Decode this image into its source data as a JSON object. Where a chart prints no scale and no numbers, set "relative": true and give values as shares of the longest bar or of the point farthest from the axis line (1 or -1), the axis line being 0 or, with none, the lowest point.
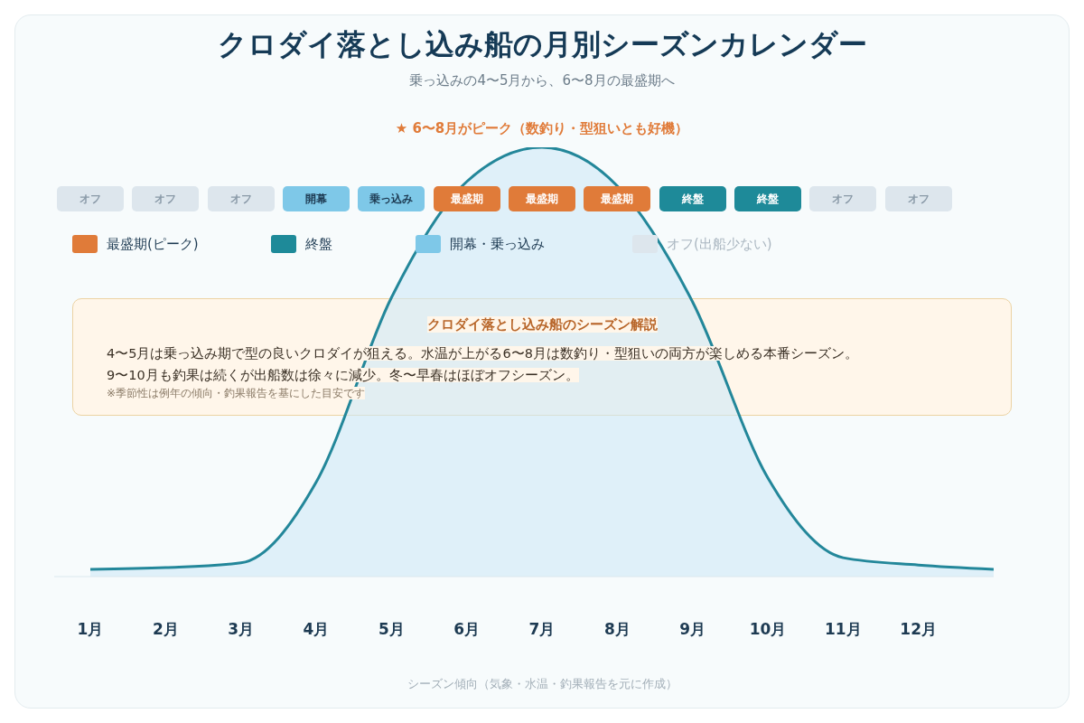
{
  "chart_data": {
    "type": "area",
    "title": "クロダイ落とし込み船の月別シーズンカレンダー",
    "subtitle": "乗っ込みの4〜5月から、6〜8月の最盛期へ",
    "categories": [
      "1月",
      "2月",
      "3月",
      "4月",
      "5月",
      "6月",
      "7月",
      "8月",
      "9月",
      "10月",
      "11月",
      "12月",
      null
    ],
    "relative": true,
    "series": [
      {
        "color": "#23879a",
        "values": [
          0.017,
          0.021,
          0.032,
          0.22,
          0.65,
          0.92,
          1,
          0.91,
          0.64,
          0.23,
          0.044,
          0.027,
          0.017
        ]
      }
    ],
    "value_labels": [
      "オフ",
      "オフ",
      "オフ",
      "開幕",
      "乗っ込み",
      "最盛期",
      "最盛期",
      "最盛期",
      "終盤",
      "終盤",
      "オフ",
      "オフ",
      null
    ],
    "colors": [
      "#dde6ed",
      "#dde6ed",
      "#dde6ed",
      "#7ec8e8",
      "#7ec8e8",
      "#e07b39",
      "#e07b39",
      "#e07b39",
      "#1e8a99",
      "#1e8a99",
      "#dde6ed",
      "#dde6ed",
      null
    ],
    "annotations": [
      "★ 6〜8月がピーク（数釣り・型狙いとも好機）",
      "最盛期(ピーク)",
      "終盤",
      "開幕・乗っ込み",
      "オフ(出船少ない)",
      "クロダイ落とし込み船のシーズン解説",
      "4〜5月は乗っ込み期で型の良いクロダイが狙える。水温が上がる6〜8月は数釣り・型狙いの両方が楽しめる本番シーズン。",
      "9〜10月も釣果は続くが出船数は徐々に減少。冬〜早春はほぼオフシーズン。",
      "※季節性は例年の傾向・釣果報告を基にした目安です",
      "シーズン傾向（気象・水温・釣果報告を元に作成）"
    ],
    "grid": false
  }
}
